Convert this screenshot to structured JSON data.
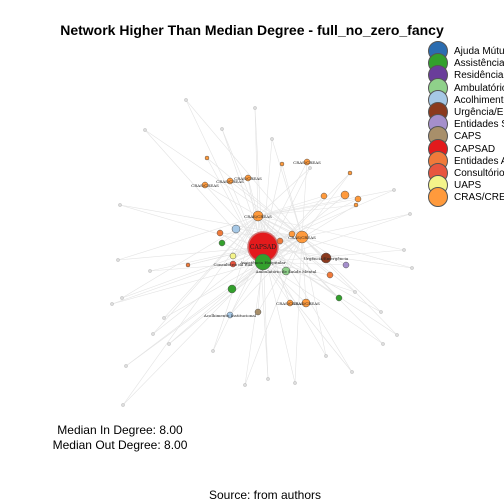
{
  "title": "Network Higher Than Median Degree - full_no_zero_fancy",
  "legend": [
    {
      "label": "Ajuda Mútua",
      "color": "#2b6cb0"
    },
    {
      "label": "Assistência",
      "color": "#33a02c"
    },
    {
      "label": "Residência",
      "color": "#6a3d9a"
    },
    {
      "label": "Ambulatório",
      "color": "#8fd18a"
    },
    {
      "label": "Acolhimento",
      "color": "#a6c8e6"
    },
    {
      "label": "Urgência/Em",
      "color": "#8b3a1e"
    },
    {
      "label": "Entidades S",
      "color": "#a58fcc"
    },
    {
      "label": "CAPS",
      "color": "#a88f6a"
    },
    {
      "label": "CAPSAD",
      "color": "#e31a1c"
    },
    {
      "label": "Entidades A",
      "color": "#f07a3a"
    },
    {
      "label": "Consultório",
      "color": "#e8553f"
    },
    {
      "label": "UAPS",
      "color": "#f4f48a"
    },
    {
      "label": "CRAS/CRE",
      "color": "#ff9a3c"
    }
  ],
  "stats": {
    "median_in": "Median In Degree: 8.00",
    "median_out": "Median Out Degree: 8.00"
  },
  "caption": "Source: from authors",
  "chart_data": {
    "type": "network",
    "title": "Network Higher Than Median Degree - full_no_zero_fancy",
    "median_in_degree": 8.0,
    "median_out_degree": 8.0,
    "node_labels": [
      "CAPSAD",
      "Assistência Hospitalar",
      "Ambulatório de Saúde Mental",
      "CRAS/CREAS",
      "Urgência/Emergência",
      "Consultório na Rua",
      "Acolhimento Institucional",
      "Entidades Assistenciais",
      "Entidades Assistenciais à Dependência Química e CT"
    ]
  }
}
